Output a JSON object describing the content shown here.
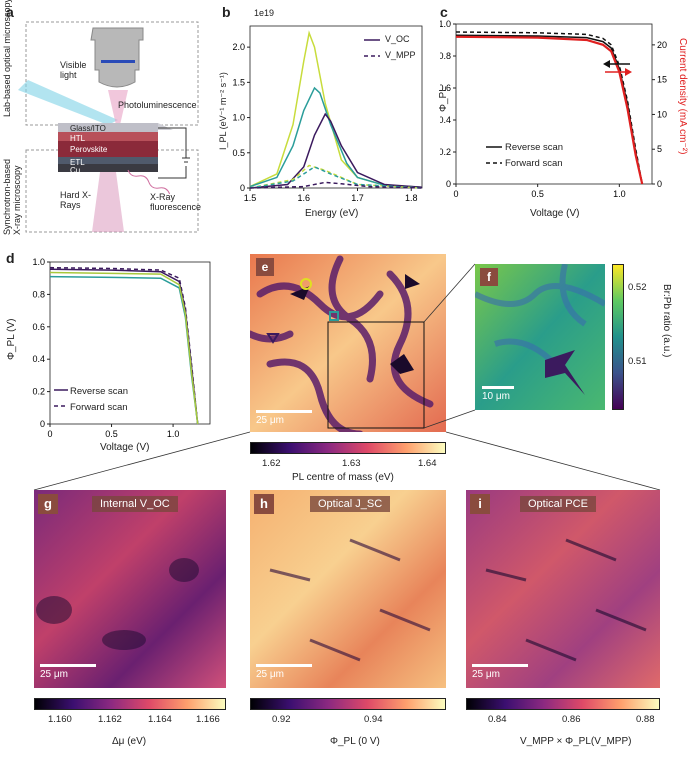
{
  "panels": {
    "a": {
      "label": "a",
      "lab_based": "Lab-based optical microscopy",
      "visible_light": "Visible light",
      "photoluminescence": "Photoluminescence",
      "layers": [
        "Glass/ITO",
        "HTL",
        "Perovskite",
        "ETL",
        "Cu"
      ],
      "synchrotron": "Synchrotron-based X-ray microscopy",
      "hard_xrays": "Hard X-Rays",
      "xray_fluorescence": "X-Ray fluorescence"
    },
    "b": {
      "label": "b",
      "exponent": "1e19",
      "xlabel": "Energy (eV)",
      "ylabel": "I_PL (eV⁻¹ m⁻² s⁻¹)",
      "legend_voc": "V_OC",
      "legend_vmpp": "V_MPP"
    },
    "c": {
      "label": "c",
      "xlabel": "Voltage (V)",
      "ylabel": "Φ_PL",
      "ylabel_right": "Current density (mA cm⁻²)",
      "legend_reverse": "Reverse scan",
      "legend_forward": "Forward scan"
    },
    "d": {
      "label": "d",
      "xlabel": "Voltage (V)",
      "ylabel": "Φ_PL (V)",
      "legend_reverse": "Reverse scan",
      "legend_forward": "Forward scan"
    },
    "e": {
      "label": "e",
      "scale": "25 μm",
      "cbar_label": "PL centre of mass (eV)",
      "cbar_ticks": [
        "1.62",
        "1.63",
        "1.64"
      ]
    },
    "f": {
      "label": "f",
      "scale": "10 μm",
      "cbar_label": "Br:Pb ratio (a.u.)",
      "cbar_ticks": [
        "0.52",
        "0.51"
      ]
    },
    "g": {
      "label": "g",
      "title": "Internal V_OC",
      "scale": "25 μm",
      "cbar_label": "Δμ (eV)",
      "cbar_ticks": [
        "1.160",
        "1.162",
        "1.164",
        "1.166"
      ]
    },
    "h": {
      "label": "h",
      "title": "Optical J_SC",
      "scale": "25 μm",
      "cbar_label": "Φ_PL (0 V)",
      "cbar_ticks": [
        "0.92",
        "0.94"
      ]
    },
    "i": {
      "label": "i",
      "title": "Optical PCE",
      "scale": "25 μm",
      "cbar_label": "V_MPP × Φ_PL(V_MPP)",
      "cbar_ticks": [
        "0.84",
        "0.86",
        "0.88"
      ]
    }
  },
  "chart_data": [
    {
      "panel": "b",
      "type": "line",
      "xlabel": "Energy (eV)",
      "ylabel": "I_PL (eV⁻¹ m⁻² s⁻¹)",
      "xlim": [
        1.5,
        1.82
      ],
      "ylim": [
        0,
        2.3
      ],
      "x_ticks": [
        "1.5",
        "1.6",
        "1.7",
        "1.8"
      ],
      "y_ticks": [
        "0",
        "0.5",
        "1.0",
        "1.5",
        "2.0"
      ],
      "series": [
        {
          "name": "V_OC",
          "color": "#c8dc3c",
          "style": "solid",
          "x": [
            1.5,
            1.55,
            1.58,
            1.6,
            1.61,
            1.62,
            1.64,
            1.67,
            1.7,
            1.75,
            1.82
          ],
          "y": [
            0.02,
            0.2,
            0.9,
            1.8,
            2.2,
            2.0,
            1.2,
            0.4,
            0.15,
            0.04,
            0.01
          ]
        },
        {
          "name": "V_OC",
          "color": "#2a9d9a",
          "style": "solid",
          "x": [
            1.5,
            1.55,
            1.58,
            1.6,
            1.62,
            1.63,
            1.65,
            1.68,
            1.7,
            1.75,
            1.82
          ],
          "y": [
            0.02,
            0.15,
            0.6,
            1.1,
            1.42,
            1.35,
            0.9,
            0.35,
            0.15,
            0.04,
            0.01
          ]
        },
        {
          "name": "V_OC",
          "color": "#3b1a5e",
          "style": "solid",
          "x": [
            1.5,
            1.57,
            1.6,
            1.62,
            1.64,
            1.65,
            1.67,
            1.7,
            1.75,
            1.82
          ],
          "y": [
            0.0,
            0.05,
            0.3,
            0.75,
            1.05,
            0.95,
            0.6,
            0.22,
            0.05,
            0.01
          ]
        },
        {
          "name": "V_MPP",
          "color": "#c8dc3c",
          "style": "dashed",
          "x": [
            1.5,
            1.58,
            1.61,
            1.64,
            1.7,
            1.82
          ],
          "y": [
            0.0,
            0.12,
            0.32,
            0.25,
            0.05,
            0.0
          ]
        },
        {
          "name": "V_MPP",
          "color": "#2a9d9a",
          "style": "dashed",
          "x": [
            1.5,
            1.58,
            1.62,
            1.65,
            1.7,
            1.82
          ],
          "y": [
            0.0,
            0.1,
            0.3,
            0.2,
            0.05,
            0.0
          ]
        },
        {
          "name": "V_MPP",
          "color": "#3b1a5e",
          "style": "dashed",
          "x": [
            1.5,
            1.6,
            1.64,
            1.67,
            1.72,
            1.82
          ],
          "y": [
            0.0,
            0.02,
            0.08,
            0.06,
            0.02,
            0.0
          ]
        }
      ]
    },
    {
      "panel": "c",
      "type": "line",
      "xlabel": "Voltage (V)",
      "ylabel": "Φ_PL",
      "xlim": [
        0,
        1.2
      ],
      "ylim": [
        0,
        1.0
      ],
      "x_ticks": [
        "0",
        "0.5",
        "1.0"
      ],
      "y_ticks": [
        "0",
        "0.2",
        "0.4",
        "0.6",
        "0.8",
        "1.0"
      ],
      "y2_ticks": [
        "0",
        "5",
        "10",
        "15",
        "20"
      ],
      "y2lim": [
        0,
        23
      ],
      "series": [
        {
          "name": "Reverse scan",
          "color": "#111111",
          "style": "solid",
          "x": [
            0,
            0.5,
            0.8,
            0.9,
            0.95,
            1.0,
            1.05,
            1.1,
            1.14
          ],
          "y": [
            0.93,
            0.925,
            0.915,
            0.89,
            0.85,
            0.72,
            0.5,
            0.2,
            0.0
          ]
        },
        {
          "name": "Forward scan",
          "color": "#111111",
          "style": "dashed",
          "x": [
            0,
            0.5,
            0.8,
            0.9,
            0.95,
            1.0,
            1.05,
            1.1,
            1.14
          ],
          "y": [
            0.95,
            0.945,
            0.935,
            0.91,
            0.87,
            0.74,
            0.52,
            0.22,
            0.0
          ]
        },
        {
          "name": "current",
          "color": "#e02020",
          "style": "solid",
          "x": [
            0,
            0.5,
            0.8,
            0.9,
            0.95,
            1.0,
            1.05,
            1.1,
            1.14
          ],
          "y": [
            0.92,
            0.915,
            0.9,
            0.87,
            0.83,
            0.7,
            0.47,
            0.18,
            0.0
          ]
        }
      ]
    },
    {
      "panel": "d",
      "type": "line",
      "xlabel": "Voltage (V)",
      "ylabel": "Φ_PL (V)",
      "xlim": [
        0,
        1.3
      ],
      "ylim": [
        0,
        1.0
      ],
      "x_ticks": [
        "0",
        "0.5",
        "1.0"
      ],
      "y_ticks": [
        "0",
        "0.2",
        "0.4",
        "0.6",
        "0.8",
        "1.0"
      ],
      "series": [
        {
          "name": "Reverse scan",
          "color": "#3b1a5e",
          "style": "solid",
          "x": [
            0,
            0.5,
            0.9,
            1.05,
            1.1,
            1.15,
            1.2
          ],
          "y": [
            0.955,
            0.95,
            0.94,
            0.88,
            0.7,
            0.35,
            0.0
          ]
        },
        {
          "name": "Forward scan",
          "color": "#3b1a5e",
          "style": "dashed",
          "x": [
            0,
            0.5,
            0.9,
            1.05,
            1.1,
            1.15,
            1.2
          ],
          "y": [
            0.965,
            0.96,
            0.95,
            0.9,
            0.72,
            0.37,
            0.0
          ]
        },
        {
          "name": "teal",
          "color": "#2a9d9a",
          "style": "solid",
          "x": [
            0,
            0.5,
            0.9,
            1.05,
            1.1,
            1.15,
            1.2
          ],
          "y": [
            0.91,
            0.905,
            0.9,
            0.84,
            0.66,
            0.3,
            0.0
          ]
        },
        {
          "name": "lime",
          "color": "#a8c83c",
          "style": "solid",
          "x": [
            0,
            0.5,
            0.9,
            1.05,
            1.1,
            1.15,
            1.2
          ],
          "y": [
            0.935,
            0.93,
            0.925,
            0.86,
            0.68,
            0.32,
            0.0
          ]
        }
      ]
    }
  ]
}
